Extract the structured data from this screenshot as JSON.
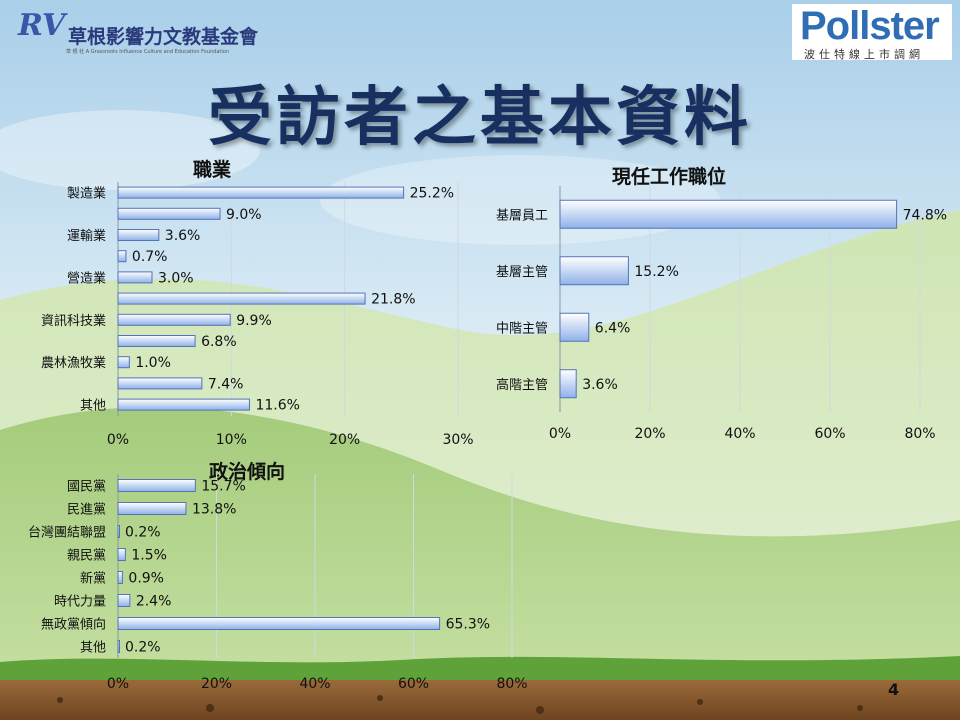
{
  "slide": {
    "title": "受訪者之基本資料",
    "page_number": "4"
  },
  "logos": {
    "foundation_mark": "RV",
    "foundation_name": "草根影響力文教基金會",
    "foundation_en": "草 根 社  A Grassroots Influence Culture and Education Foundation",
    "pollster_word": "Pollster",
    "pollster_sub": "波仕特線上市調網"
  },
  "colors": {
    "bar_fill_start": "#ffffff",
    "bar_fill_end": "#8fb1e8",
    "bar_stroke": "#5573b7",
    "title_color": "#17305f"
  },
  "chart_data": [
    {
      "type": "bar",
      "orientation": "horizontal",
      "title": "職業",
      "categories": [
        "製造業",
        "",
        "運輸業",
        "",
        "營造業",
        "",
        "資訊科技業",
        "",
        "農林漁牧業",
        "",
        "其他"
      ],
      "values": [
        25.2,
        9.0,
        3.6,
        0.7,
        3.0,
        21.8,
        9.9,
        6.8,
        1.0,
        7.4,
        11.6
      ],
      "value_labels": [
        "25.2%",
        "9.0%",
        "3.6%",
        "0.7%",
        "3.0%",
        "21.8%",
        "9.9%",
        "6.8%",
        "1.0%",
        "7.4%",
        "11.6%"
      ],
      "xlim": [
        0,
        30
      ],
      "ticks": [
        0,
        10,
        20,
        30
      ],
      "tick_labels": [
        "0%",
        "10%",
        "20%",
        "30%"
      ],
      "grid": true
    },
    {
      "type": "bar",
      "orientation": "horizontal",
      "title": "現任工作職位",
      "categories": [
        "基層員工",
        "基層主管",
        "中階主管",
        "高階主管"
      ],
      "values": [
        74.8,
        15.2,
        6.4,
        3.6
      ],
      "value_labels": [
        "74.8%",
        "15.2%",
        "6.4%",
        "3.6%"
      ],
      "xlim": [
        0,
        80
      ],
      "ticks": [
        0,
        20,
        40,
        60,
        80
      ],
      "tick_labels": [
        "0%",
        "20%",
        "40%",
        "60%",
        "80%"
      ],
      "grid": true
    },
    {
      "type": "bar",
      "orientation": "horizontal",
      "title": "政治傾向",
      "categories": [
        "國民黨",
        "民進黨",
        "台灣團結聯盟",
        "親民黨",
        "新黨",
        "時代力量",
        "無政黨傾向",
        "其他"
      ],
      "values": [
        15.7,
        13.8,
        0.2,
        1.5,
        0.9,
        2.4,
        65.3,
        0.2
      ],
      "value_labels": [
        "15.7%",
        "13.8%",
        "0.2%",
        "1.5%",
        "0.9%",
        "2.4%",
        "65.3%",
        "0.2%"
      ],
      "xlim": [
        0,
        80
      ],
      "ticks": [
        0,
        20,
        40,
        60,
        80
      ],
      "tick_labels": [
        "0%",
        "20%",
        "40%",
        "60%",
        "80%"
      ],
      "grid": true
    }
  ]
}
